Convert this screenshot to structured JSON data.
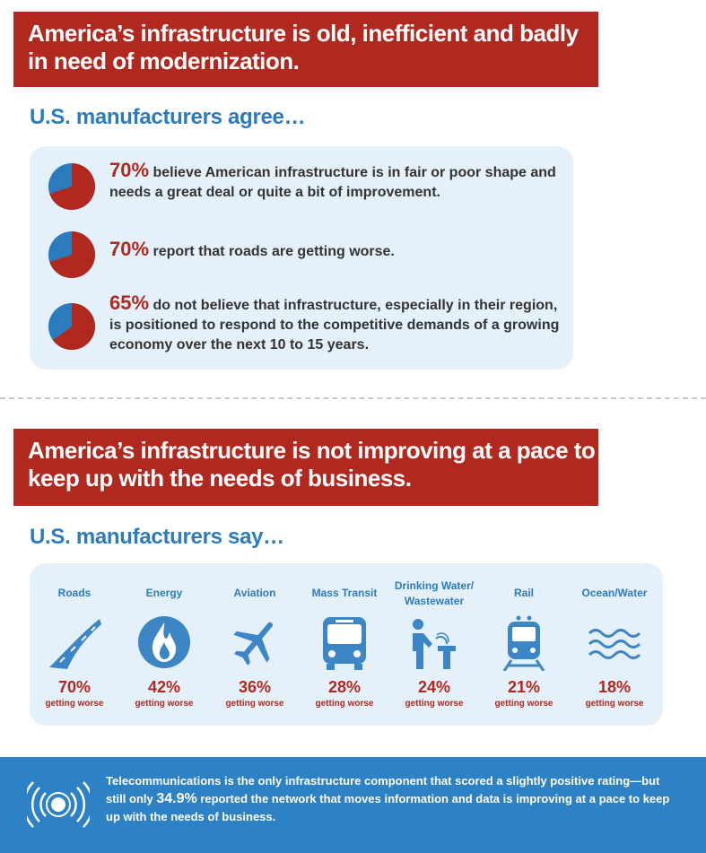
{
  "section1": {
    "title_line1": "America’s infrastructure is old, inefficient and badly",
    "title_line2": "in need of modernization.",
    "subheading": "U.S. manufacturers agree…",
    "stats": [
      {
        "percent": "70%",
        "value": 70,
        "text": " believe American infrastructure is in fair or poor shape and needs a great deal or quite a bit of improvement."
      },
      {
        "percent": "70%",
        "value": 70,
        "text": " report that roads are getting worse."
      },
      {
        "percent": "65%",
        "value": 65,
        "text": " do not believe that infrastructure, especially in their region, is positioned to respond to the competitive demands of a growing economy over the next 10 to 15 years."
      }
    ]
  },
  "section2": {
    "title_line1": "America’s infrastructure is not improving at a pace to",
    "title_line2": "keep up with the needs of business.",
    "subheading": "U.S. manufacturers say…",
    "categories": [
      {
        "label": "Roads",
        "icon": "road-icon",
        "percent": "70%",
        "sub": "getting worse"
      },
      {
        "label": "Energy",
        "icon": "flame-icon",
        "percent": "42%",
        "sub": "getting worse"
      },
      {
        "label": "Aviation",
        "icon": "airplane-icon",
        "percent": "36%",
        "sub": "getting worse"
      },
      {
        "label": "Mass Transit",
        "icon": "bus-icon",
        "percent": "28%",
        "sub": "getting worse"
      },
      {
        "label": "Drinking Water/ Wastewater",
        "icon": "water-fountain-icon",
        "percent": "24%",
        "sub": "getting worse"
      },
      {
        "label": "Rail",
        "icon": "train-icon",
        "percent": "21%",
        "sub": "getting worse"
      },
      {
        "label": "Ocean/Water",
        "icon": "waves-icon",
        "percent": "18%",
        "sub": "getting worse"
      }
    ]
  },
  "footer": {
    "icon": "signal-broadcast-icon",
    "text_before": "Telecommunications is the only infrastructure component that scored a slightly positive rating—but still only ",
    "highlight": "34.9%",
    "text_after": " reported the network that moves information and data is improving at a pace to keep up with the needs of business."
  },
  "colors": {
    "red": "#b1281f",
    "blue": "#2b7bbd",
    "panel": "#e4f1fa",
    "icon_blue": "#3d86c6"
  }
}
